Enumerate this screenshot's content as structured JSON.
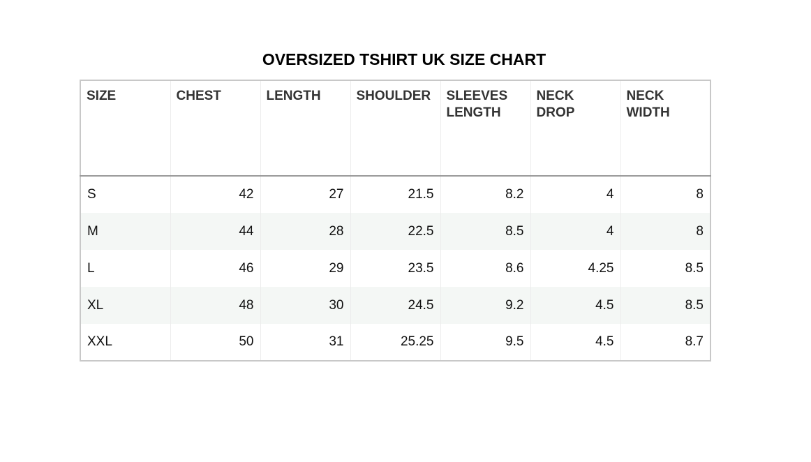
{
  "title": "OVERSIZED TSHIRT UK SIZE CHART",
  "headers": [
    "SIZE",
    "CHEST",
    "LENGTH",
    "SHOULDER",
    "SLEEVES LENGTH",
    "NECK DROP",
    "NECK WIDTH"
  ],
  "rows": [
    [
      "S",
      "42",
      "27",
      "21.5",
      "8.2",
      "4",
      "8"
    ],
    [
      "M",
      "44",
      "28",
      "22.5",
      "8.5",
      "4",
      "8"
    ],
    [
      "L",
      "46",
      "29",
      "23.5",
      "8.6",
      "4.25",
      "8.5"
    ],
    [
      "XL",
      "48",
      "30",
      "24.5",
      "9.2",
      "4.5",
      "8.5"
    ],
    [
      "XXL",
      "50",
      "31",
      "25.25",
      "9.5",
      "4.5",
      "8.7"
    ]
  ]
}
